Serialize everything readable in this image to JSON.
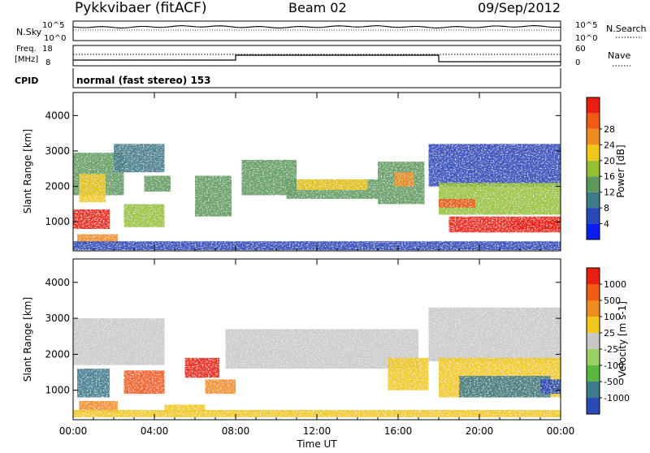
{
  "header": {
    "station": "Pykkvibaer (fitACF)",
    "beam": "Beam 02",
    "date": "09/Sep/2012"
  },
  "top_panels": {
    "nsky_label": "N.Sky",
    "nsky_ticks": [
      "10^5",
      "10^0"
    ],
    "nsearch_label": "N.Search",
    "nsearch_ticks": [
      "10^5",
      "10^0"
    ],
    "freq_label_1": "Freq.",
    "freq_label_2": "[MHz]",
    "freq_ticks": [
      "18",
      "8"
    ],
    "nave_label": "Nave",
    "nave_ticks": [
      "60",
      "0"
    ],
    "cpid_label": "CPID",
    "cpid_value": "normal (fast stereo) 153"
  },
  "chart_data": [
    {
      "type": "heatmap",
      "name": "power",
      "xlabel": "",
      "ylabel": "Slant Range [km]",
      "xlim": [
        0,
        24
      ],
      "ylim": [
        180,
        4650
      ],
      "x_ticks": [
        "00:00",
        "04:00",
        "08:00",
        "12:00",
        "16:00",
        "20:00",
        "00:00"
      ],
      "y_ticks": [
        1000,
        2000,
        3000,
        4000
      ],
      "colorbar": {
        "label": "Power [dB]",
        "ticks": [
          "4",
          "8",
          "12",
          "16",
          "20",
          "24",
          "28"
        ],
        "colors": [
          "#0a1ef0",
          "#2a47b8",
          "#3f7a88",
          "#5c9a5c",
          "#96c032",
          "#f0c818",
          "#f08c1e",
          "#f05a14",
          "#e81e10"
        ]
      },
      "patches": [
        {
          "t0": 0.0,
          "t1": 2.5,
          "r0": 1750,
          "r1": 2950,
          "level": 3
        },
        {
          "t0": 0.0,
          "t1": 1.8,
          "r0": 800,
          "r1": 1350,
          "level": 8
        },
        {
          "t0": 0.3,
          "t1": 1.6,
          "r0": 1550,
          "r1": 2350,
          "level": 5
        },
        {
          "t0": 0.2,
          "t1": 2.2,
          "r0": 400,
          "r1": 650,
          "level": 6
        },
        {
          "t0": 2.0,
          "t1": 4.5,
          "r0": 2400,
          "r1": 3200,
          "level": 2
        },
        {
          "t0": 2.5,
          "t1": 4.5,
          "r0": 850,
          "r1": 1500,
          "level": 4
        },
        {
          "t0": 3.5,
          "t1": 4.8,
          "r0": 1850,
          "r1": 2300,
          "level": 3
        },
        {
          "t0": 6.0,
          "t1": 7.8,
          "r0": 1150,
          "r1": 2300,
          "level": 3
        },
        {
          "t0": 8.3,
          "t1": 11.0,
          "r0": 1750,
          "r1": 2750,
          "level": 3
        },
        {
          "t0": 10.5,
          "t1": 15.0,
          "r0": 1650,
          "r1": 2200,
          "level": 3
        },
        {
          "t0": 11.0,
          "t1": 14.5,
          "r0": 1900,
          "r1": 2200,
          "level": 5
        },
        {
          "t0": 15.0,
          "t1": 17.3,
          "r0": 1500,
          "r1": 2700,
          "level": 3
        },
        {
          "t0": 15.8,
          "t1": 16.8,
          "r0": 2000,
          "r1": 2400,
          "level": 6
        },
        {
          "t0": 17.5,
          "t1": 24.0,
          "r0": 2000,
          "r1": 3200,
          "level": 1
        },
        {
          "t0": 18.0,
          "t1": 24.0,
          "r0": 1200,
          "r1": 2100,
          "level": 4
        },
        {
          "t0": 18.0,
          "t1": 19.8,
          "r0": 1400,
          "r1": 1650,
          "level": 7
        },
        {
          "t0": 18.5,
          "t1": 24.0,
          "r0": 700,
          "r1": 1150,
          "level": 8
        },
        {
          "t0": 21.5,
          "t1": 24.0,
          "r0": 800,
          "r1": 1050,
          "level": 8
        },
        {
          "t0": 0.0,
          "t1": 24.0,
          "r0": 200,
          "r1": 450,
          "level": 1
        }
      ]
    },
    {
      "type": "heatmap",
      "name": "velocity",
      "xlabel": "Time UT",
      "ylabel": "Slant Range [km]",
      "xlim": [
        0,
        24
      ],
      "ylim": [
        180,
        4650
      ],
      "x_ticks": [
        "00:00",
        "04:00",
        "08:00",
        "12:00",
        "16:00",
        "20:00",
        "00:00"
      ],
      "y_ticks": [
        1000,
        2000,
        3000,
        4000
      ],
      "colorbar": {
        "label": "Velocity [m s-1]",
        "ticks": [
          "1000",
          "500",
          "100",
          "25",
          "-25",
          "-100",
          "-500",
          "-1000"
        ],
        "colors": [
          "#2a4ab8",
          "#3c7a8c",
          "#58b840",
          "#9ad264",
          "#c8c8c8",
          "#f0c818",
          "#f08c1e",
          "#f05a14",
          "#e81e10"
        ]
      },
      "patches": [
        {
          "t0": 0.0,
          "t1": 4.5,
          "r0": 1700,
          "r1": 3000,
          "level": 4
        },
        {
          "t0": 0.2,
          "t1": 1.8,
          "r0": 800,
          "r1": 1600,
          "level": 1
        },
        {
          "t0": 0.3,
          "t1": 2.2,
          "r0": 400,
          "r1": 700,
          "level": 6
        },
        {
          "t0": 2.5,
          "t1": 4.5,
          "r0": 900,
          "r1": 1550,
          "level": 7
        },
        {
          "t0": 4.5,
          "t1": 6.5,
          "r0": 400,
          "r1": 600,
          "level": 5
        },
        {
          "t0": 5.5,
          "t1": 7.2,
          "r0": 1350,
          "r1": 1900,
          "level": 8
        },
        {
          "t0": 6.5,
          "t1": 8.0,
          "r0": 900,
          "r1": 1300,
          "level": 6
        },
        {
          "t0": 7.5,
          "t1": 17.0,
          "r0": 1600,
          "r1": 2700,
          "level": 4
        },
        {
          "t0": 15.5,
          "t1": 17.5,
          "r0": 1000,
          "r1": 1900,
          "level": 5
        },
        {
          "t0": 17.5,
          "t1": 24.0,
          "r0": 1800,
          "r1": 3300,
          "level": 4
        },
        {
          "t0": 18.0,
          "t1": 24.0,
          "r0": 800,
          "r1": 1900,
          "level": 5
        },
        {
          "t0": 19.0,
          "t1": 23.5,
          "r0": 800,
          "r1": 1400,
          "level": 1
        },
        {
          "t0": 23.0,
          "t1": 24.0,
          "r0": 900,
          "r1": 1300,
          "level": 0
        },
        {
          "t0": 0.0,
          "t1": 24.0,
          "r0": 250,
          "r1": 450,
          "level": 5
        }
      ]
    }
  ]
}
